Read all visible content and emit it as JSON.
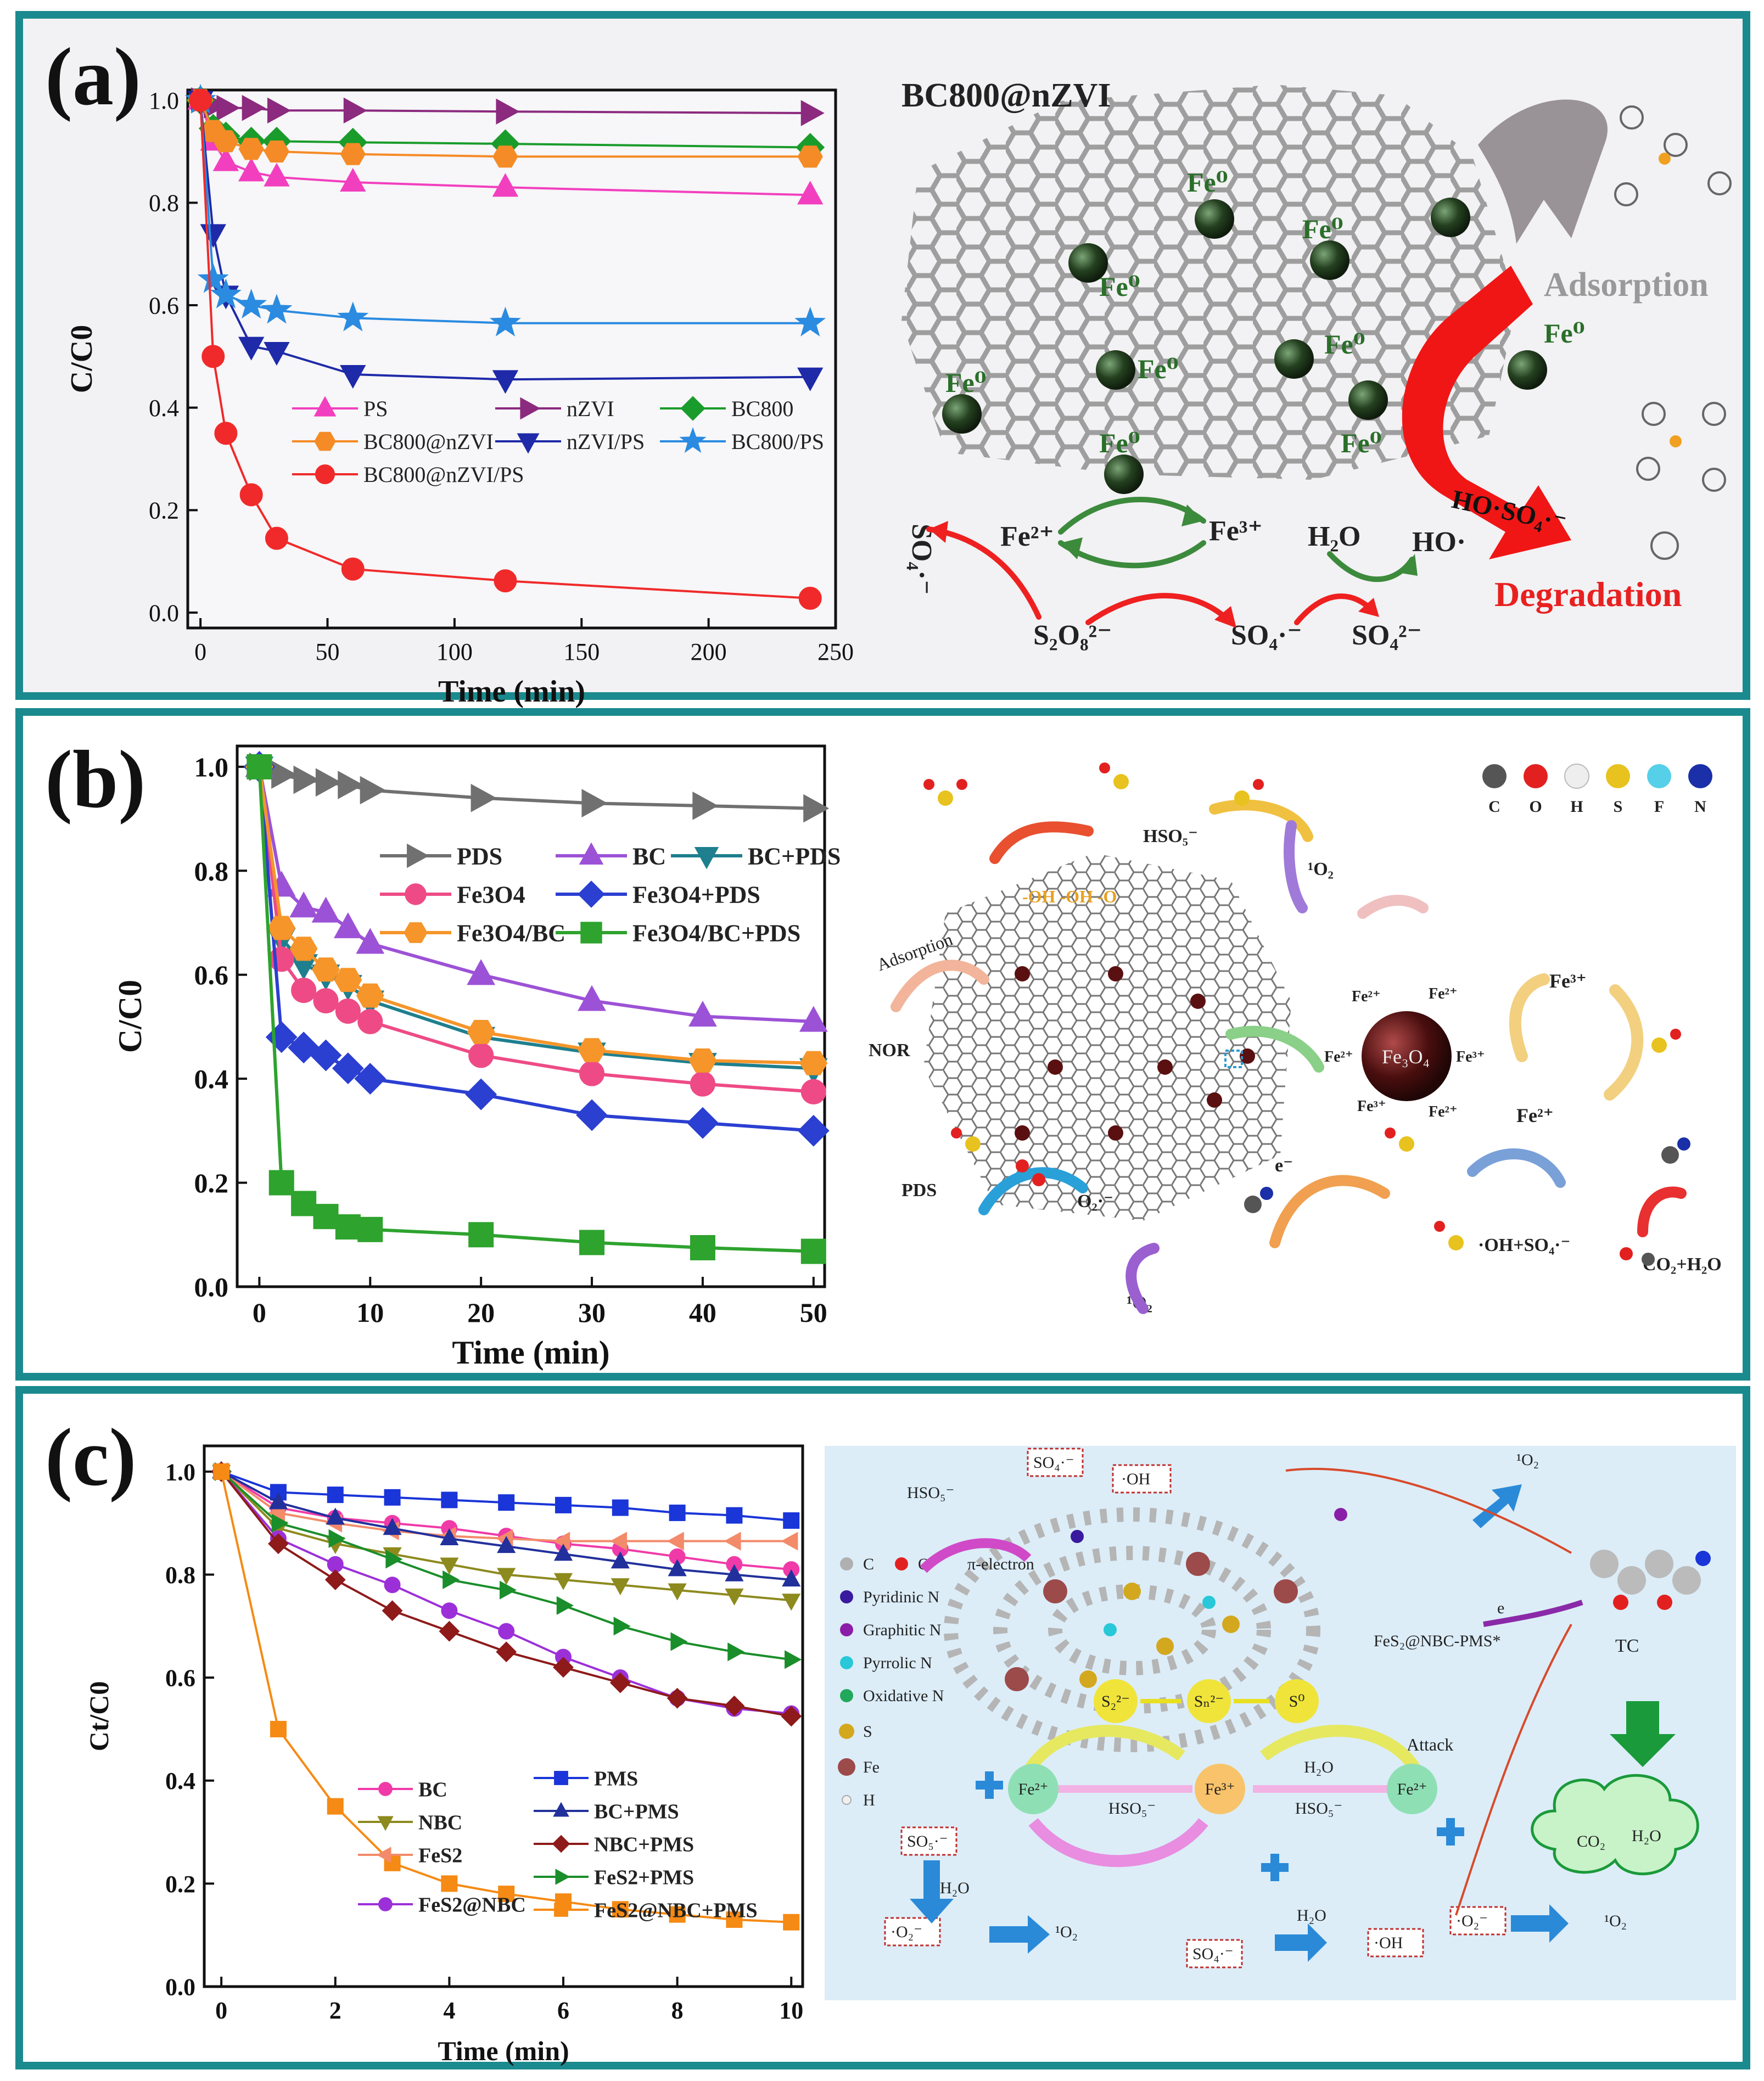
{
  "panels": [
    {
      "label": "(a)",
      "chart_data": {
        "type": "line",
        "xlabel": "Time (min)",
        "ylabel": "C/C0",
        "xlim": [
          -5,
          250
        ],
        "ylim": [
          -0.03,
          1.02
        ],
        "xticks": [
          0,
          50,
          100,
          150,
          200,
          250
        ],
        "yticks": [
          0.0,
          0.2,
          0.4,
          0.6,
          0.8,
          1.0
        ],
        "ytick_labels": [
          "0.0",
          "0.2",
          "0.4",
          "0.6",
          "0.8",
          "1.0"
        ],
        "series": [
          {
            "name": "PS",
            "color": "#f23fbf",
            "marker": "triangle-up",
            "x": [
              0,
              5,
              10,
              20,
              30,
              60,
              120,
              240
            ],
            "y": [
              1.0,
              0.92,
              0.88,
              0.86,
              0.85,
              0.84,
              0.83,
              0.815
            ]
          },
          {
            "name": "nZVI",
            "color": "#8b2a7e",
            "marker": "triangle-right",
            "x": [
              0,
              5,
              10,
              20,
              30,
              60,
              120,
              240
            ],
            "y": [
              1.0,
              0.99,
              0.985,
              0.985,
              0.98,
              0.98,
              0.978,
              0.975
            ]
          },
          {
            "name": "BC800",
            "color": "#1a9c2c",
            "marker": "diamond",
            "x": [
              0,
              5,
              10,
              20,
              30,
              60,
              120,
              240
            ],
            "y": [
              1.0,
              0.945,
              0.93,
              0.92,
              0.92,
              0.918,
              0.915,
              0.908
            ]
          },
          {
            "name": "BC800@nZVI",
            "color": "#f58b26",
            "marker": "hexagon",
            "x": [
              0,
              5,
              10,
              20,
              30,
              60,
              120,
              240
            ],
            "y": [
              1.0,
              0.94,
              0.92,
              0.905,
              0.9,
              0.895,
              0.89,
              0.89
            ]
          },
          {
            "name": "nZVI/PS",
            "color": "#1e2aa8",
            "marker": "triangle-down",
            "x": [
              0,
              5,
              10,
              20,
              30,
              60,
              120,
              240
            ],
            "y": [
              1.0,
              0.74,
              0.62,
              0.52,
              0.51,
              0.465,
              0.455,
              0.46
            ]
          },
          {
            "name": "BC800/PS",
            "color": "#2a8be0",
            "marker": "star",
            "x": [
              0,
              5,
              10,
              20,
              30,
              60,
              120,
              240
            ],
            "y": [
              1.0,
              0.65,
              0.62,
              0.6,
              0.59,
              0.575,
              0.565,
              0.565
            ]
          },
          {
            "name": "BC800@nZVI/PS",
            "color": "#f02a2a",
            "marker": "circle",
            "x": [
              0,
              5,
              10,
              20,
              30,
              60,
              120,
              240
            ],
            "y": [
              1.0,
              0.5,
              0.35,
              0.23,
              0.145,
              0.085,
              0.062,
              0.028
            ]
          }
        ]
      },
      "scheme": {
        "title": "BC800@nZVI",
        "fe0": "Fe⁰",
        "adsorption": "Adsorption",
        "fe2": "Fe²⁺",
        "fe3": "Fe³⁺",
        "so4_rad_rot": "SO₄·⁻",
        "s2o8": "S₂O₈²⁻",
        "so4_rad": "SO₄·⁻",
        "h2o": "H₂O",
        "ho": "HO·",
        "so42": "SO₄²⁻",
        "arrow_ho": "HO·",
        "arrow_so4": "SO₄·⁻",
        "degradation": "Degradation"
      }
    },
    {
      "label": "(b)",
      "chart_data": {
        "type": "line",
        "xlabel": "Time (min)",
        "ylabel": "C/C0",
        "xlim": [
          -2,
          51
        ],
        "ylim": [
          0.0,
          1.04
        ],
        "xticks": [
          0,
          10,
          20,
          30,
          40,
          50
        ],
        "yticks": [
          0.0,
          0.2,
          0.4,
          0.6,
          0.8,
          1.0
        ],
        "ytick_labels": [
          "0.0",
          "0.2",
          "0.4",
          "0.6",
          "0.8",
          "1.0"
        ],
        "series": [
          {
            "name": "PDS",
            "color": "#707070",
            "marker": "triangle-right",
            "x": [
              0,
              2,
              4,
              6,
              8,
              10,
              20,
              30,
              40,
              50
            ],
            "y": [
              1.0,
              0.985,
              0.975,
              0.97,
              0.965,
              0.955,
              0.94,
              0.93,
              0.925,
              0.92
            ]
          },
          {
            "name": "BC",
            "color": "#9c52d6",
            "marker": "triangle-up",
            "x": [
              0,
              2,
              4,
              6,
              8,
              10,
              20,
              30,
              40,
              50
            ],
            "y": [
              1.0,
              0.77,
              0.73,
              0.72,
              0.69,
              0.66,
              0.6,
              0.55,
              0.52,
              0.51
            ]
          },
          {
            "name": "BC+PDS",
            "color": "#1e7f8e",
            "marker": "triangle-down",
            "x": [
              0,
              2,
              4,
              6,
              8,
              10,
              20,
              30,
              40,
              50
            ],
            "y": [
              1.0,
              0.67,
              0.62,
              0.6,
              0.58,
              0.55,
              0.48,
              0.45,
              0.43,
              0.42
            ]
          },
          {
            "name": "Fe3O4",
            "color": "#ee4b86",
            "marker": "circle",
            "x": [
              0,
              2,
              4,
              6,
              8,
              10,
              20,
              30,
              40,
              50
            ],
            "y": [
              1.0,
              0.63,
              0.57,
              0.55,
              0.53,
              0.51,
              0.445,
              0.41,
              0.39,
              0.375
            ]
          },
          {
            "name": "Fe3O4+PDS",
            "color": "#2b3fd1",
            "marker": "diamond",
            "x": [
              0,
              2,
              4,
              6,
              8,
              10,
              20,
              30,
              40,
              50
            ],
            "y": [
              1.0,
              0.48,
              0.46,
              0.445,
              0.42,
              0.4,
              0.37,
              0.33,
              0.315,
              0.3
            ]
          },
          {
            "name": "Fe3O4/BC",
            "color": "#f5952a",
            "marker": "hexagon",
            "x": [
              0,
              2,
              4,
              6,
              8,
              10,
              20,
              30,
              40,
              50
            ],
            "y": [
              1.0,
              0.69,
              0.65,
              0.61,
              0.59,
              0.56,
              0.49,
              0.455,
              0.435,
              0.43
            ]
          },
          {
            "name": "Fe3O4/BC+PDS",
            "color": "#2ea32e",
            "marker": "square",
            "x": [
              0,
              2,
              4,
              6,
              8,
              10,
              20,
              30,
              40,
              50
            ],
            "y": [
              1.0,
              0.2,
              0.16,
              0.135,
              0.115,
              0.11,
              0.1,
              0.085,
              0.075,
              0.068
            ]
          }
        ]
      },
      "scheme": {
        "legend_atoms": [
          "C",
          "O",
          "H",
          "S",
          "F",
          "N"
        ],
        "atom_colors": [
          "#555555",
          "#e32020",
          "#eeeeee",
          "#e8c21e",
          "#55d0e8",
          "#1a2fa8"
        ],
        "hso5": "HSO₅⁻",
        "o2_1": "¹O₂",
        "adsorption": "Adsorption",
        "nor": "NOR",
        "fe3o4": "Fe₃O₄",
        "fe2": "Fe²⁺",
        "fe3": "Fe³⁺",
        "pds": "PDS",
        "o2_rad": "O₂·⁻",
        "o2_singlet": "¹O₂",
        "oh_so4": "·OH+SO₄·⁻",
        "co2_h2o": "CO₂+H₂O",
        "e": "e⁻",
        "surface_groups": "-OH  -OH  -O"
      }
    },
    {
      "label": "(c)",
      "chart_data": {
        "type": "line",
        "xlabel": "Time (min)",
        "ylabel": "Ct/C0",
        "xlim": [
          -0.3,
          10.2
        ],
        "ylim": [
          0.0,
          1.05
        ],
        "xticks": [
          0,
          2,
          4,
          6,
          8,
          10
        ],
        "yticks": [
          0.0,
          0.2,
          0.4,
          0.6,
          0.8,
          1.0
        ],
        "ytick_labels": [
          "0.0",
          "0.2",
          "0.4",
          "0.6",
          "0.8",
          "1.0"
        ],
        "series": [
          {
            "name": "BC",
            "color": "#f03aa8",
            "marker": "circle",
            "x": [
              0,
              1,
              2,
              3,
              4,
              5,
              6,
              7,
              8,
              9,
              10
            ],
            "y": [
              1.0,
              0.93,
              0.91,
              0.9,
              0.89,
              0.875,
              0.86,
              0.85,
              0.835,
              0.82,
              0.81
            ]
          },
          {
            "name": "NBC",
            "color": "#8d8a1e",
            "marker": "triangle-down",
            "x": [
              0,
              1,
              2,
              3,
              4,
              5,
              6,
              7,
              8,
              9,
              10
            ],
            "y": [
              1.0,
              0.89,
              0.86,
              0.84,
              0.82,
              0.8,
              0.79,
              0.78,
              0.77,
              0.76,
              0.75
            ]
          },
          {
            "name": "FeS2",
            "color": "#f38a6a",
            "marker": "triangle-left",
            "x": [
              0,
              1,
              2,
              3,
              4,
              5,
              6,
              7,
              8,
              9,
              10
            ],
            "y": [
              1.0,
              0.92,
              0.9,
              0.885,
              0.875,
              0.87,
              0.865,
              0.865,
              0.865,
              0.865,
              0.865
            ]
          },
          {
            "name": "FeS2@NBC",
            "color": "#9c30d8",
            "marker": "circle",
            "x": [
              0,
              1,
              2,
              3,
              4,
              5,
              6,
              7,
              8,
              9,
              10
            ],
            "y": [
              1.0,
              0.87,
              0.82,
              0.78,
              0.73,
              0.69,
              0.64,
              0.6,
              0.56,
              0.54,
              0.53
            ]
          },
          {
            "name": "PMS",
            "color": "#1a35d8",
            "marker": "square",
            "x": [
              0,
              1,
              2,
              3,
              4,
              5,
              6,
              7,
              8,
              9,
              10
            ],
            "y": [
              1.0,
              0.96,
              0.955,
              0.95,
              0.945,
              0.94,
              0.935,
              0.93,
              0.92,
              0.915,
              0.905
            ]
          },
          {
            "name": "BC+PMS",
            "color": "#22309c",
            "marker": "triangle-up",
            "x": [
              0,
              1,
              2,
              3,
              4,
              5,
              6,
              7,
              8,
              9,
              10
            ],
            "y": [
              1.0,
              0.94,
              0.91,
              0.89,
              0.87,
              0.855,
              0.84,
              0.825,
              0.81,
              0.8,
              0.79
            ]
          },
          {
            "name": "NBC+PMS",
            "color": "#8e1a1a",
            "marker": "diamond",
            "x": [
              0,
              1,
              2,
              3,
              4,
              5,
              6,
              7,
              8,
              9,
              10
            ],
            "y": [
              1.0,
              0.86,
              0.79,
              0.73,
              0.69,
              0.65,
              0.62,
              0.59,
              0.56,
              0.545,
              0.525
            ]
          },
          {
            "name": "FeS2+PMS",
            "color": "#1a8e2a",
            "marker": "triangle-right",
            "x": [
              0,
              1,
              2,
              3,
              4,
              5,
              6,
              7,
              8,
              9,
              10
            ],
            "y": [
              1.0,
              0.9,
              0.87,
              0.83,
              0.79,
              0.77,
              0.74,
              0.7,
              0.67,
              0.65,
              0.635
            ]
          },
          {
            "name": "FeS2@NBC+PMS",
            "color": "#f58a14",
            "marker": "square",
            "x": [
              0,
              1,
              2,
              3,
              4,
              5,
              6,
              7,
              8,
              9,
              10
            ],
            "y": [
              1.0,
              0.5,
              0.35,
              0.24,
              0.2,
              0.18,
              0.165,
              0.15,
              0.14,
              0.13,
              0.125
            ]
          }
        ]
      },
      "scheme": {
        "legend": [
          "C",
          "O",
          "Pyridinic N",
          "Graphitic N",
          "Pyrrolic N",
          "Oxidative N",
          "S",
          "Fe",
          "H"
        ],
        "legend_colors": [
          "#b0b0b0",
          "#e32020",
          "#3a1a9e",
          "#8a1ea8",
          "#28c8d8",
          "#22a85a",
          "#d4a81e",
          "#9c4a4a",
          "#f0f0f0"
        ],
        "so4_top": "SO₄·⁻",
        "oh_top": "·OH",
        "hso5_top": "HSO₅⁻",
        "pi_electron": "π-electron",
        "o2_top": "¹O₂",
        "e": "e",
        "complex": "FeS₂@NBC-PMS*",
        "tc": "TC",
        "attack": "Attack",
        "s22": "S₂²⁻",
        "sn2": "Sₙ²⁻",
        "s0": "S⁰",
        "fe2_left": "Fe²⁺",
        "fe3": "Fe³⁺",
        "fe2_right": "Fe²⁺",
        "hso5_left": "HSO₅⁻",
        "hso5_right": "HSO₅⁻",
        "h2o_mid": "H₂O",
        "so5": "SO₅·⁻",
        "h2o_left": "H₂O",
        "o2rad_left": "·O₂⁻",
        "o2_left": "¹O₂",
        "so4_bottom": "SO₄·⁻",
        "h2o_bottom": "H₂O",
        "oh_bottom": "·OH",
        "o2rad_bottom": "·O₂⁻",
        "o2_bottom": "¹O₂",
        "co2": "CO₂",
        "h2o_cloud": "H₂O"
      }
    }
  ]
}
